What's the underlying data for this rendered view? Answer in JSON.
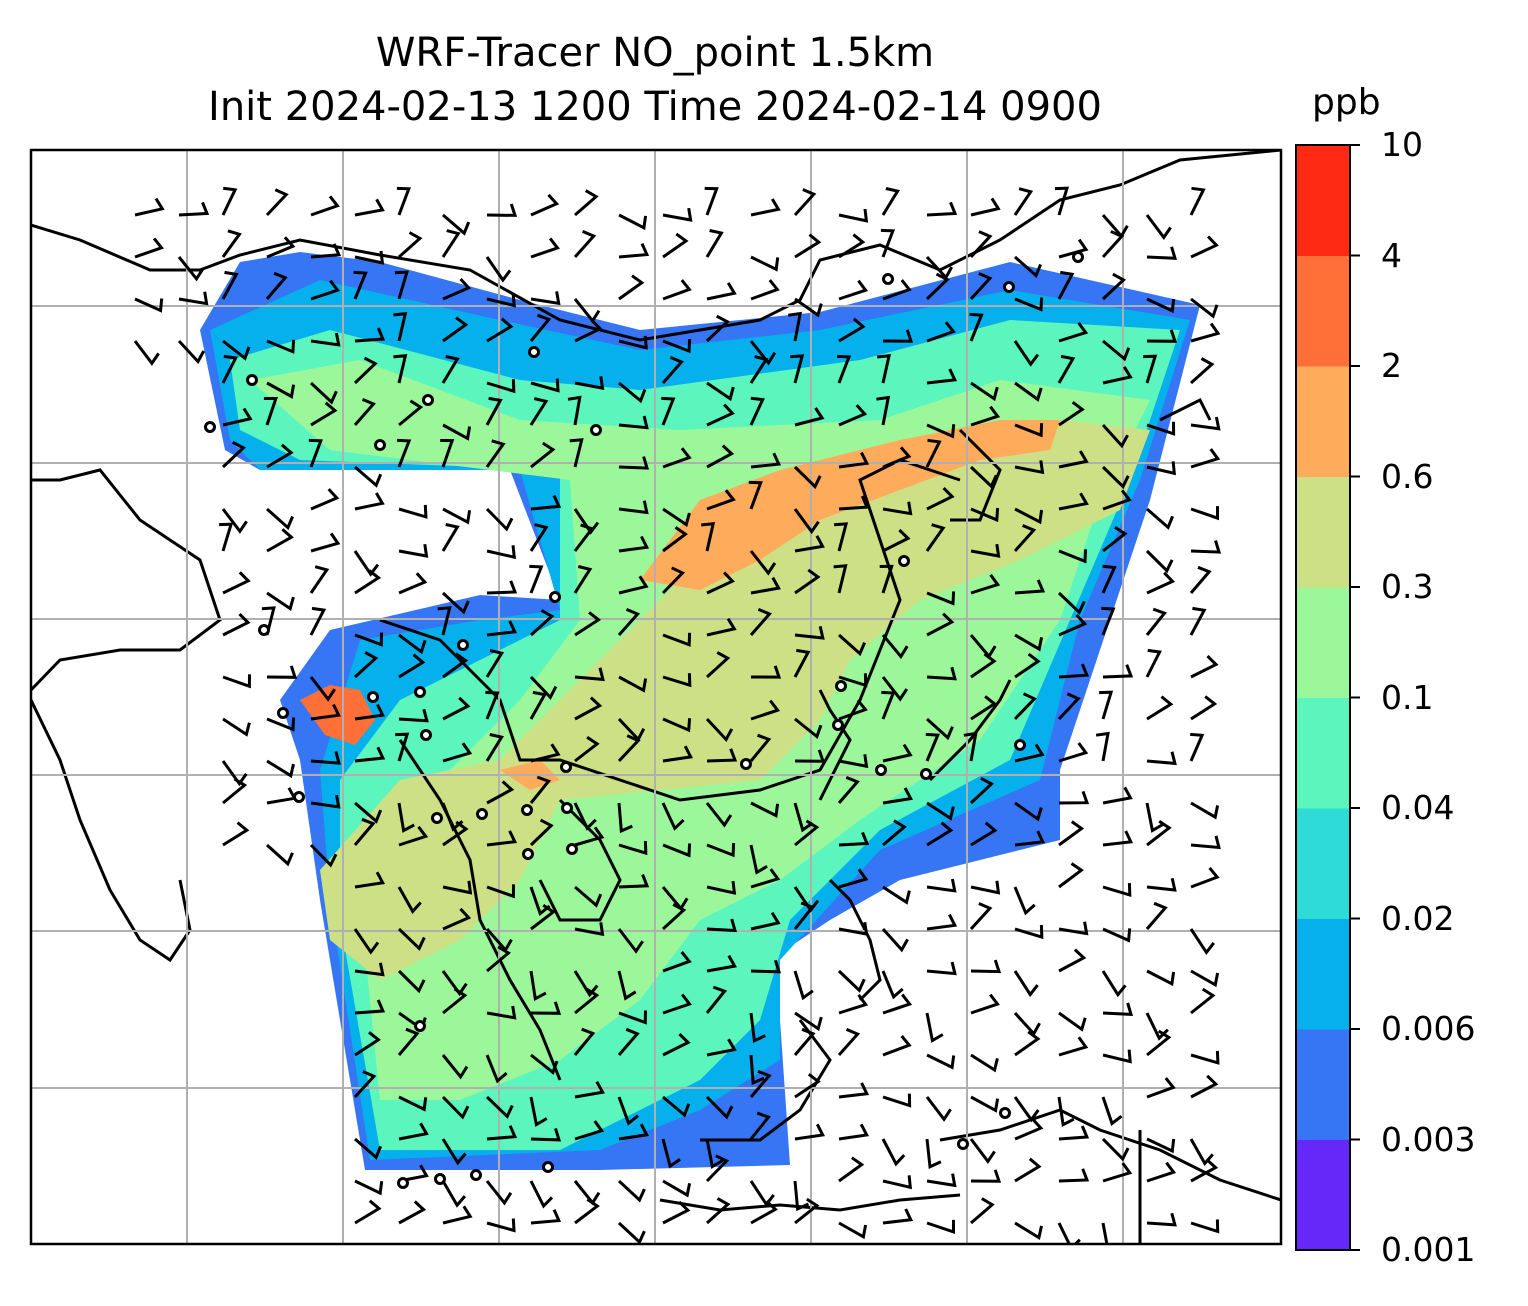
{
  "chart_data": {
    "type": "heatmap",
    "title": "WRF-Tracer NO_point 1.5km",
    "subtitle": "Init 2024-02-13 1200 Time 2024-02-14 0900",
    "colorbar": {
      "unit": "ppb",
      "levels": [
        "0.001",
        "0.003",
        "0.006",
        "0.02",
        "0.04",
        "0.1",
        "0.3",
        "0.6",
        "2",
        "4",
        "10"
      ],
      "colors": [
        "#6628f8",
        "#3675f3",
        "#06b0ec",
        "#2fdbd7",
        "#5cf5be",
        "#9cf79b",
        "#cde085",
        "#ffab5c",
        "#ff7038",
        "#ff2a14"
      ]
    },
    "grid": true,
    "overlays": [
      "coastlines",
      "country borders",
      "wind barbs",
      "station markers"
    ]
  }
}
